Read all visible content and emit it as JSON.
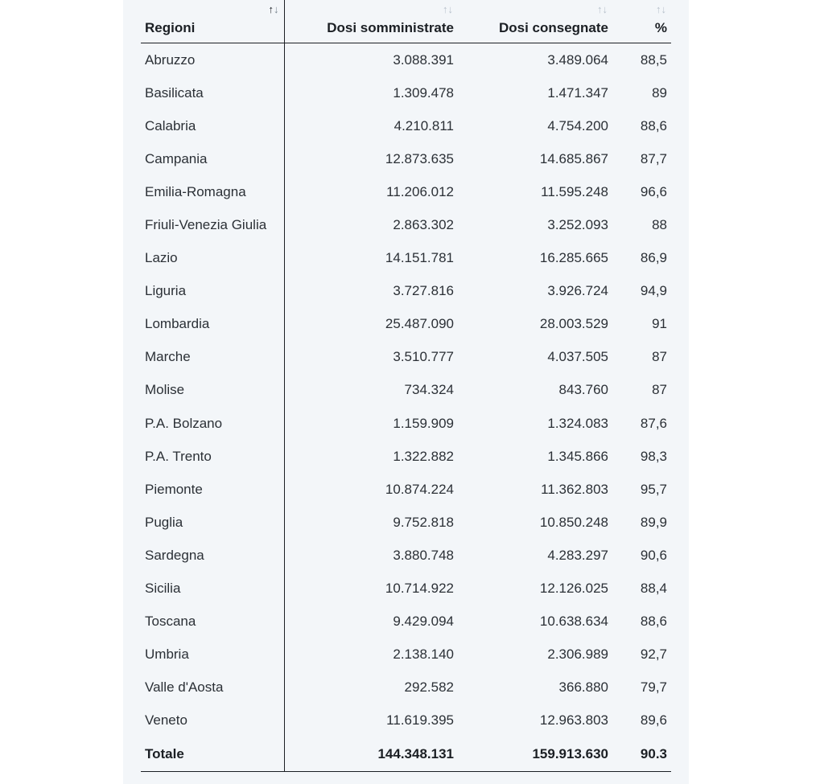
{
  "headers": {
    "region": "Regioni",
    "administered": "Dosi somministrate",
    "delivered": "Dosi consegnate",
    "percent": "%",
    "sort_up": "↑",
    "sort_down": "↓"
  },
  "rows": [
    {
      "region": "Abruzzo",
      "administered": "3.088.391",
      "delivered": "3.489.064",
      "percent": "88,5"
    },
    {
      "region": "Basilicata",
      "administered": "1.309.478",
      "delivered": "1.471.347",
      "percent": "89"
    },
    {
      "region": "Calabria",
      "administered": "4.210.811",
      "delivered": "4.754.200",
      "percent": "88,6"
    },
    {
      "region": "Campania",
      "administered": "12.873.635",
      "delivered": "14.685.867",
      "percent": "87,7"
    },
    {
      "region": "Emilia-Romagna",
      "administered": "11.206.012",
      "delivered": "11.595.248",
      "percent": "96,6"
    },
    {
      "region": "Friuli-Venezia Giulia",
      "administered": "2.863.302",
      "delivered": "3.252.093",
      "percent": "88"
    },
    {
      "region": "Lazio",
      "administered": "14.151.781",
      "delivered": "16.285.665",
      "percent": "86,9"
    },
    {
      "region": "Liguria",
      "administered": "3.727.816",
      "delivered": "3.926.724",
      "percent": "94,9"
    },
    {
      "region": "Lombardia",
      "administered": "25.487.090",
      "delivered": "28.003.529",
      "percent": "91"
    },
    {
      "region": "Marche",
      "administered": "3.510.777",
      "delivered": "4.037.505",
      "percent": "87"
    },
    {
      "region": "Molise",
      "administered": "734.324",
      "delivered": "843.760",
      "percent": "87"
    },
    {
      "region": "P.A. Bolzano",
      "administered": "1.159.909",
      "delivered": "1.324.083",
      "percent": "87,6"
    },
    {
      "region": "P.A. Trento",
      "administered": "1.322.882",
      "delivered": "1.345.866",
      "percent": "98,3"
    },
    {
      "region": "Piemonte",
      "administered": "10.874.224",
      "delivered": "11.362.803",
      "percent": "95,7"
    },
    {
      "region": "Puglia",
      "administered": "9.752.818",
      "delivered": "10.850.248",
      "percent": "89,9"
    },
    {
      "region": "Sardegna",
      "administered": "3.880.748",
      "delivered": "4.283.297",
      "percent": "90,6"
    },
    {
      "region": "Sicilia",
      "administered": "10.714.922",
      "delivered": "12.126.025",
      "percent": "88,4"
    },
    {
      "region": "Toscana",
      "administered": "9.429.094",
      "delivered": "10.638.634",
      "percent": "88,6"
    },
    {
      "region": "Umbria",
      "administered": "2.138.140",
      "delivered": "2.306.989",
      "percent": "92,7"
    },
    {
      "region": "Valle d'Aosta",
      "administered": "292.582",
      "delivered": "366.880",
      "percent": "79,7"
    },
    {
      "region": "Veneto",
      "administered": "11.619.395",
      "delivered": "12.963.803",
      "percent": "89,6"
    }
  ],
  "total": {
    "region": "Totale",
    "administered": "144.348.131",
    "delivered": "159.913.630",
    "percent": "90.3"
  },
  "colors": {
    "panel_background": "#f3f6f9",
    "text": "#1b1f24",
    "sort_inactive": "#b9c2cc"
  },
  "icons": {
    "sort": "sort-arrows-icon"
  }
}
